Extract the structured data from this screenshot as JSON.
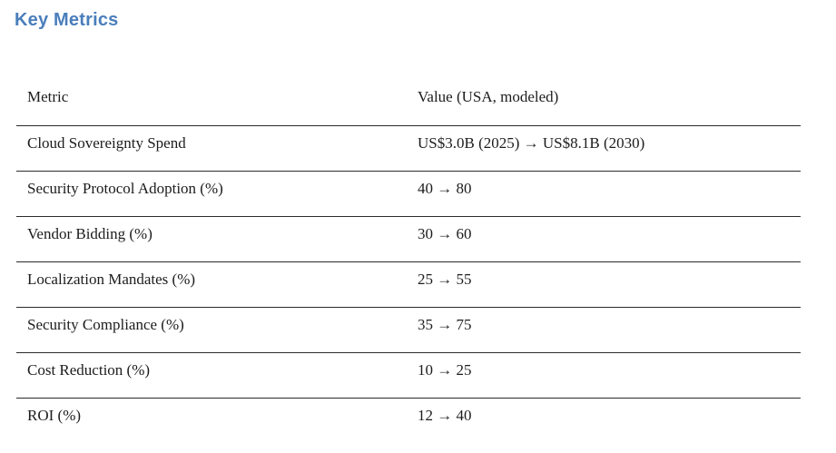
{
  "page": {
    "title": "Key Metrics",
    "title_color": "#4a7ebb"
  },
  "table": {
    "columns": [
      "Metric",
      "Value (USA, modeled)"
    ],
    "rows": [
      {
        "metric": "Cloud Sovereignty Spend",
        "value": "US$3.0B (2025) → US$8.1B (2030)"
      },
      {
        "metric": "Security Protocol Adoption (%)",
        "value": "40 → 80"
      },
      {
        "metric": "Vendor Bidding (%)",
        "value": "30 → 60"
      },
      {
        "metric": "Localization Mandates (%)",
        "value": "25 → 55"
      },
      {
        "metric": "Security Compliance (%)",
        "value": "35 → 75"
      },
      {
        "metric": "Cost Reduction (%)",
        "value": "10 → 25"
      },
      {
        "metric": "ROI (%)",
        "value": "12 → 40"
      }
    ]
  }
}
